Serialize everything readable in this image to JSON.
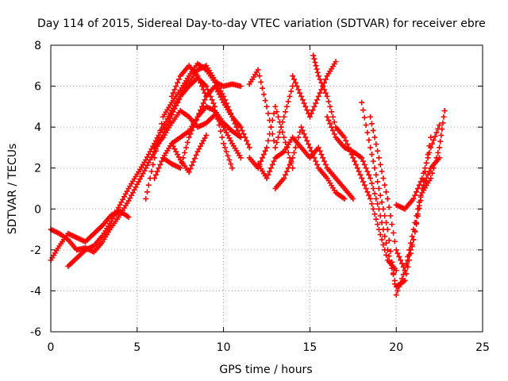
{
  "chart_data": {
    "type": "scatter",
    "title": "Day 114 of 2015, Sidereal Day-to-day VTEC variation (SDTVAR) for receiver ebre",
    "xlabel": "GPS time / hours",
    "ylabel": "SDTVAR / TECUs",
    "xlim": [
      0,
      25
    ],
    "ylim": [
      -6,
      8
    ],
    "xticks": [
      "0",
      "5",
      "10",
      "15",
      "20",
      "25"
    ],
    "yticks": [
      "-6",
      "-4",
      "-2",
      "0",
      "2",
      "4",
      "6",
      "8"
    ],
    "grid": true,
    "marker": "+",
    "color": "#ff0000",
    "series": [
      {
        "points": [
          [
            0,
            -2.5
          ],
          [
            0.5,
            -1.8
          ],
          [
            1,
            -1.2
          ],
          [
            1.5,
            -1.4
          ],
          [
            2,
            -1.6
          ],
          [
            2.5,
            -1.2
          ],
          [
            3,
            -0.8
          ],
          [
            3.5,
            -0.3
          ],
          [
            4,
            -0.1
          ],
          [
            4.5,
            -0.4
          ]
        ]
      },
      {
        "points": [
          [
            0,
            -1.0
          ],
          [
            0.5,
            -1.2
          ],
          [
            1,
            -1.5
          ],
          [
            1.5,
            -2.0
          ],
          [
            2,
            -1.9
          ],
          [
            2.5,
            -2.1
          ],
          [
            3,
            -1.6
          ],
          [
            3.5,
            -0.9
          ],
          [
            4,
            -0.3
          ],
          [
            4.5,
            0.4
          ],
          [
            5,
            1.2
          ],
          [
            5.5,
            2.0
          ],
          [
            6,
            2.8
          ],
          [
            6.5,
            3.6
          ],
          [
            7,
            4.6
          ],
          [
            7.5,
            5.5
          ],
          [
            8,
            6.2
          ],
          [
            8.5,
            6.8
          ],
          [
            9,
            7.0
          ],
          [
            9.5,
            6.3
          ],
          [
            10,
            5.5
          ],
          [
            10.5,
            4.5
          ],
          [
            11,
            3.5
          ]
        ]
      },
      {
        "points": [
          [
            1,
            -2.8
          ],
          [
            1.5,
            -2.4
          ],
          [
            2,
            -2.0
          ],
          [
            2.5,
            -1.8
          ],
          [
            3,
            -1.3
          ],
          [
            3.5,
            -0.6
          ],
          [
            4,
            0.2
          ],
          [
            4.5,
            1.0
          ],
          [
            5,
            1.7
          ],
          [
            5.5,
            2.4
          ],
          [
            6,
            3.2
          ],
          [
            6.5,
            4.0
          ],
          [
            7,
            4.8
          ],
          [
            7.5,
            5.5
          ],
          [
            8,
            6.0
          ],
          [
            8.5,
            6.4
          ],
          [
            9,
            6.0
          ],
          [
            9.5,
            5.0
          ],
          [
            10,
            3.2
          ],
          [
            10.5,
            2.0
          ]
        ]
      },
      {
        "points": [
          [
            5.5,
            0.5
          ],
          [
            6,
            2.5
          ],
          [
            6.5,
            4.5
          ],
          [
            7,
            5.2
          ],
          [
            7.5,
            5.8
          ],
          [
            8,
            6.5
          ],
          [
            8.5,
            7.1
          ],
          [
            9,
            6.8
          ],
          [
            9.5,
            6.2
          ],
          [
            10,
            6.0
          ],
          [
            10.5,
            6.1
          ],
          [
            11,
            6.0
          ]
        ]
      },
      {
        "points": [
          [
            6,
            1.5
          ],
          [
            6.5,
            2.5
          ],
          [
            7,
            3.2
          ],
          [
            7.5,
            3.5
          ],
          [
            8,
            3.8
          ],
          [
            8.5,
            4.5
          ],
          [
            9,
            5.5
          ],
          [
            9.5,
            6.0
          ],
          [
            10,
            5.2
          ],
          [
            10.5,
            4.5
          ],
          [
            11,
            4.0
          ],
          [
            11.5,
            3.0
          ]
        ]
      },
      {
        "points": [
          [
            6,
            3.0
          ],
          [
            6.5,
            3.5
          ],
          [
            7,
            4.2
          ],
          [
            7.5,
            4.8
          ],
          [
            8,
            4.5
          ],
          [
            8.5,
            4.0
          ],
          [
            9,
            4.2
          ],
          [
            9.5,
            4.6
          ],
          [
            10,
            4.0
          ],
          [
            10.5,
            3.2
          ],
          [
            11,
            2.5
          ]
        ]
      },
      {
        "points": [
          [
            6.5,
            2.5
          ],
          [
            7,
            2.2
          ],
          [
            7.5,
            2.0
          ],
          [
            8,
            3.5
          ],
          [
            8.5,
            4.5
          ],
          [
            9,
            5.0
          ],
          [
            9.5,
            4.8
          ],
          [
            10,
            4.2
          ],
          [
            10.5,
            3.8
          ],
          [
            11,
            3.5
          ]
        ]
      },
      {
        "points": [
          [
            7,
            3.2
          ],
          [
            7.5,
            2.4
          ],
          [
            8,
            1.8
          ],
          [
            8.5,
            2.8
          ],
          [
            9,
            3.6
          ]
        ]
      },
      {
        "points": [
          [
            7,
            5.5
          ],
          [
            7.5,
            6.5
          ],
          [
            8,
            7.0
          ],
          [
            8.5,
            6.5
          ],
          [
            9,
            5.5
          ]
        ]
      },
      {
        "points": [
          [
            11.5,
            6.1
          ],
          [
            12,
            6.8
          ],
          [
            12.5,
            5.0
          ],
          [
            13,
            3.0
          ],
          [
            13.5,
            4.5
          ],
          [
            14,
            6.0
          ]
        ]
      },
      {
        "points": [
          [
            11.5,
            2.5
          ],
          [
            12,
            2.0
          ],
          [
            12.5,
            3.0
          ],
          [
            13,
            5.0
          ],
          [
            13.5,
            3.5
          ],
          [
            14,
            2.0
          ]
        ]
      },
      {
        "points": [
          [
            12,
            2.2
          ],
          [
            12.5,
            1.5
          ],
          [
            13,
            2.5
          ],
          [
            13.5,
            2.8
          ],
          [
            14,
            3.5
          ],
          [
            14.5,
            3.0
          ],
          [
            15,
            2.5
          ],
          [
            15.5,
            3.0
          ],
          [
            16,
            2.0
          ],
          [
            16.5,
            1.5
          ],
          [
            17,
            1.0
          ],
          [
            17.5,
            0.5
          ]
        ]
      },
      {
        "points": [
          [
            13,
            1.0
          ],
          [
            13.5,
            1.5
          ],
          [
            14,
            2.5
          ],
          [
            14.5,
            4.0
          ],
          [
            15,
            3.0
          ],
          [
            15.5,
            2.0
          ],
          [
            16,
            1.5
          ],
          [
            16.5,
            0.8
          ],
          [
            17,
            0.5
          ]
        ]
      },
      {
        "points": [
          [
            14,
            6.5
          ],
          [
            14.5,
            5.5
          ],
          [
            15,
            4.5
          ],
          [
            15.5,
            5.5
          ],
          [
            16,
            6.5
          ],
          [
            16.5,
            7.2
          ]
        ]
      },
      {
        "points": [
          [
            15.2,
            7.5
          ],
          [
            15.5,
            6.5
          ],
          [
            16,
            5.5
          ],
          [
            16.5,
            4.0
          ],
          [
            17,
            3.5
          ],
          [
            17.5,
            2.5
          ],
          [
            18,
            1.5
          ],
          [
            18.5,
            0.5
          ],
          [
            19,
            -1.0
          ],
          [
            19.5,
            -2.5
          ],
          [
            20,
            -3.0
          ]
        ]
      },
      {
        "points": [
          [
            16,
            4.5
          ],
          [
            16.5,
            3.5
          ],
          [
            17,
            3.0
          ],
          [
            17.5,
            2.8
          ],
          [
            18,
            2.5
          ],
          [
            18.5,
            1.5
          ],
          [
            19,
            0.0
          ],
          [
            19.5,
            -2.0
          ],
          [
            20,
            -3.8
          ],
          [
            20.5,
            -3.5
          ],
          [
            21,
            -1.5
          ],
          [
            21.5,
            1.0
          ],
          [
            22,
            3.5
          ]
        ]
      },
      {
        "points": [
          [
            18,
            5.2
          ],
          [
            18.5,
            3.0
          ],
          [
            19,
            1.0
          ],
          [
            19.5,
            -1.0
          ],
          [
            20,
            -4.2
          ],
          [
            20.5,
            -3.0
          ],
          [
            21,
            -1.0
          ],
          [
            21.5,
            1.0
          ],
          [
            22,
            2.0
          ],
          [
            22.5,
            2.5
          ]
        ]
      },
      {
        "points": [
          [
            18.5,
            4.5
          ],
          [
            19,
            2.5
          ],
          [
            19.5,
            0.5
          ],
          [
            20,
            -2.0
          ],
          [
            20.5,
            -3.0
          ],
          [
            21,
            -1.5
          ],
          [
            21.5,
            0.8
          ],
          [
            22,
            1.5
          ],
          [
            22.5,
            3.0
          ],
          [
            22.8,
            4.8
          ]
        ]
      },
      {
        "points": [
          [
            20,
            0.2
          ],
          [
            20.5,
            0.0
          ],
          [
            21,
            0.5
          ],
          [
            21.5,
            1.5
          ],
          [
            22,
            3.0
          ],
          [
            22.5,
            4.1
          ]
        ]
      }
    ]
  }
}
